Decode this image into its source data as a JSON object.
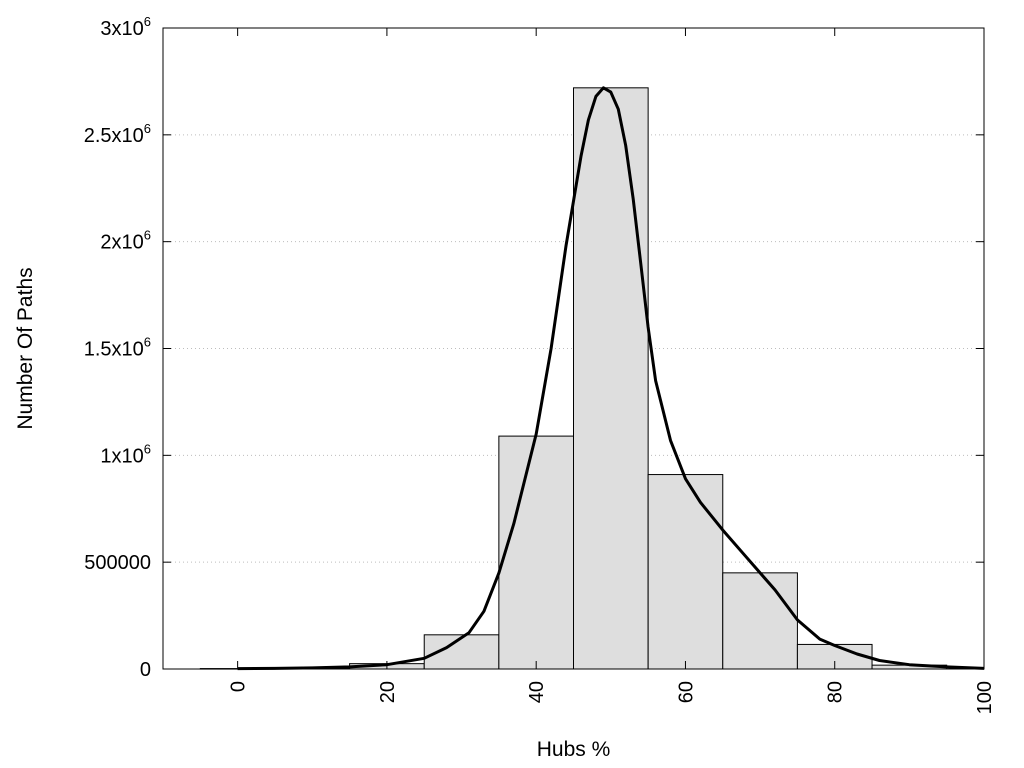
{
  "chart_data": {
    "type": "bar",
    "xlabel": "Hubs %",
    "ylabel": "Number Of Paths",
    "xlim": [
      -10,
      100
    ],
    "ylim": [
      0,
      3000000
    ],
    "grid": "horizontal-dotted",
    "x_ticks": [
      {
        "value": 0,
        "label": "0"
      },
      {
        "value": 20,
        "label": "20"
      },
      {
        "value": 40,
        "label": "40"
      },
      {
        "value": 60,
        "label": "60"
      },
      {
        "value": 80,
        "label": "80"
      },
      {
        "value": 100,
        "label": "100"
      }
    ],
    "y_ticks": [
      {
        "value": 0,
        "label": "0",
        "sup": ""
      },
      {
        "value": 500000,
        "label": "500000",
        "sup": ""
      },
      {
        "value": 1000000,
        "label": "1x10",
        "sup": "6"
      },
      {
        "value": 1500000,
        "label": "1.5x10",
        "sup": "6"
      },
      {
        "value": 2000000,
        "label": "2x10",
        "sup": "6"
      },
      {
        "value": 2500000,
        "label": "2.5x10",
        "sup": "6"
      },
      {
        "value": 3000000,
        "label": "3x10",
        "sup": "6"
      }
    ],
    "bin_width": 10,
    "bars": [
      {
        "x": 0,
        "value": 2000
      },
      {
        "x": 10,
        "value": 5000
      },
      {
        "x": 20,
        "value": 25000
      },
      {
        "x": 30,
        "value": 160000
      },
      {
        "x": 40,
        "value": 1090000
      },
      {
        "x": 50,
        "value": 2720000
      },
      {
        "x": 60,
        "value": 910000
      },
      {
        "x": 70,
        "value": 450000
      },
      {
        "x": 80,
        "value": 115000
      },
      {
        "x": 90,
        "value": 18000
      }
    ],
    "curve": {
      "x": [
        0,
        5,
        10,
        15,
        20,
        25,
        28,
        31,
        33,
        35,
        37,
        40,
        42,
        44,
        46,
        47,
        48,
        49,
        50,
        51,
        52,
        53,
        54,
        55,
        56,
        58,
        60,
        62,
        65,
        68,
        70,
        72,
        75,
        78,
        80,
        83,
        86,
        90,
        95,
        100
      ],
      "y": [
        2000,
        3000,
        5000,
        10000,
        20000,
        50000,
        100000,
        170000,
        270000,
        450000,
        680000,
        1100000,
        1500000,
        1980000,
        2400000,
        2570000,
        2680000,
        2720000,
        2700000,
        2620000,
        2450000,
        2200000,
        1900000,
        1600000,
        1350000,
        1070000,
        890000,
        780000,
        650000,
        530000,
        450000,
        370000,
        230000,
        140000,
        110000,
        70000,
        40000,
        20000,
        10000,
        3000
      ]
    }
  }
}
